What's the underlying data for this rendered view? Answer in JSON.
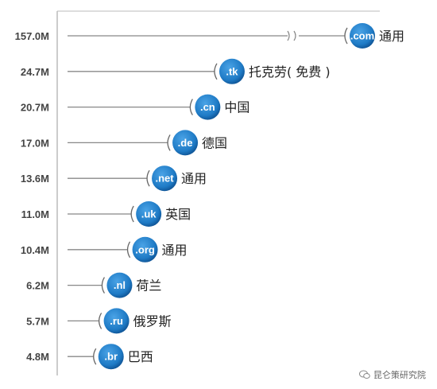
{
  "chart_data": {
    "type": "bar",
    "categories": [
      ".com",
      ".tk",
      ".cn",
      ".de",
      ".net",
      ".uk",
      ".org",
      ".nl",
      ".ru",
      ".br"
    ],
    "descriptions": [
      "通用",
      "托克劳( 免费 )",
      "中国",
      "德国",
      "通用",
      "英国",
      "通用",
      "荷兰",
      "俄罗斯",
      "巴西"
    ],
    "values": [
      157.0,
      24.7,
      20.7,
      17.0,
      13.6,
      11.0,
      10.4,
      6.2,
      5.7,
      4.8
    ],
    "value_labels": [
      "157.0M",
      "24.7M",
      "20.7M",
      "17.0M",
      "13.6M",
      "11.0M",
      "10.4M",
      "6.2M",
      "5.7M",
      "4.8M"
    ],
    "axis_break": true,
    "grid": false,
    "colors": {
      "bubble": "#1f7bc6",
      "bubble_dark": "#0d4f8f",
      "line": "#888888"
    }
  },
  "watermark": {
    "text": "昆仑策研究院"
  }
}
